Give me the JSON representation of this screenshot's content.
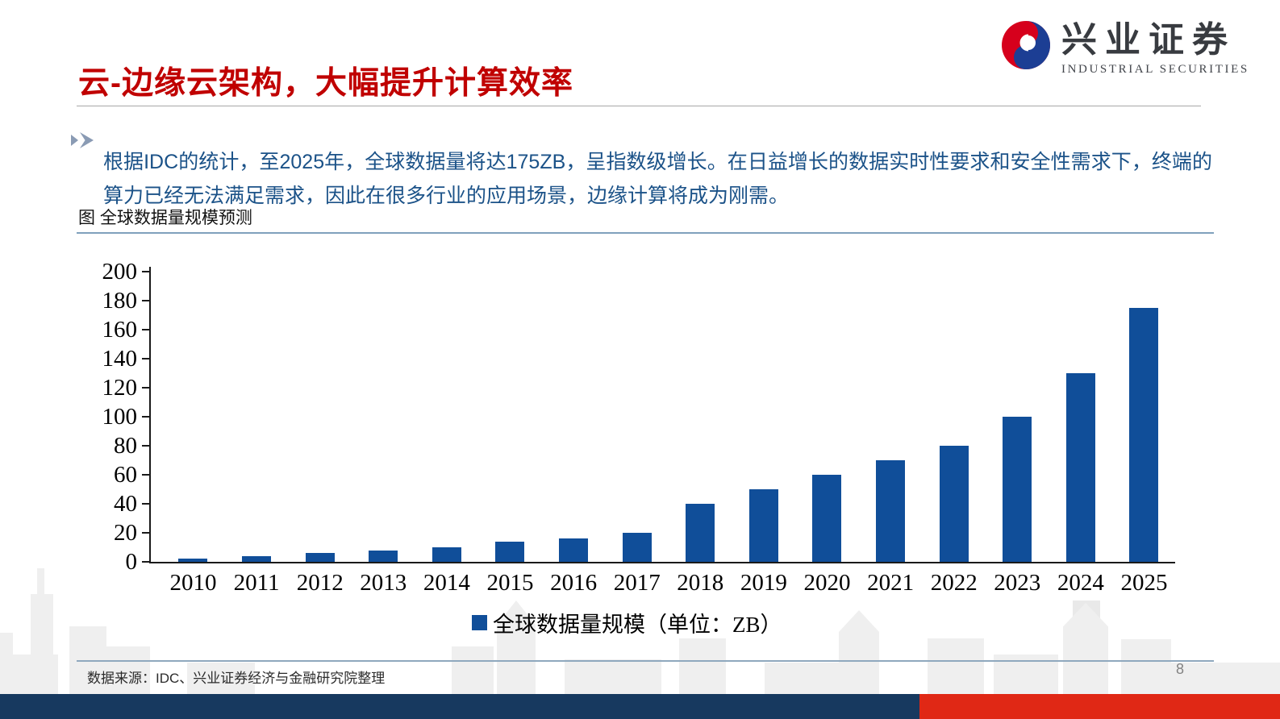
{
  "header": {
    "title": "云-边缘云架构，大幅提升计算效率"
  },
  "logo": {
    "name_cn": "兴业证券",
    "name_en": "INDUSTRIAL SECURITIES"
  },
  "bullet": {
    "text": "根据IDC的统计，至2025年，全球数据量将达175ZB，呈指数级增长。在日益增长的数据实时性要求和安全性需求下，终端的算力已经无法满足需求，因此在很多行业的应用场景，边缘计算将成为刚需。"
  },
  "figure": {
    "caption": "图 全球数据量规模预测"
  },
  "chart_data": {
    "type": "bar",
    "title": "全球数据量规模预测",
    "categories": [
      "2010",
      "2011",
      "2012",
      "2013",
      "2014",
      "2015",
      "2016",
      "2017",
      "2018",
      "2019",
      "2020",
      "2021",
      "2022",
      "2023",
      "2024",
      "2025"
    ],
    "values": [
      2,
      4,
      6,
      8,
      10,
      14,
      16,
      20,
      40,
      50,
      60,
      70,
      80,
      100,
      130,
      175
    ],
    "legend": "全球数据量规模（单位：ZB）",
    "unit": "ZB",
    "xlabel": "",
    "ylabel": "",
    "ylim": [
      0,
      200
    ],
    "ytick_step": 20,
    "grid": false,
    "legend_position": "bottom",
    "bar_color": "#104E99"
  },
  "footer": {
    "source": "数据来源：IDC、兴业证券经济与金融研究院整理",
    "page_number": "8"
  },
  "colors": {
    "title_red": "#C00000",
    "body_text_blue": "#1B5288",
    "bar_blue": "#104E99",
    "caption_rule_blue": "#7FA0BC",
    "footer_rule_blue": "#8FA8BE",
    "bottom_bar_navy": "#17395F",
    "bottom_bar_red": "#E02815",
    "logo_red": "#D6001C",
    "logo_blue": "#1C3E94",
    "bullet_arrow_gray_blue": "#8A9BB4"
  }
}
